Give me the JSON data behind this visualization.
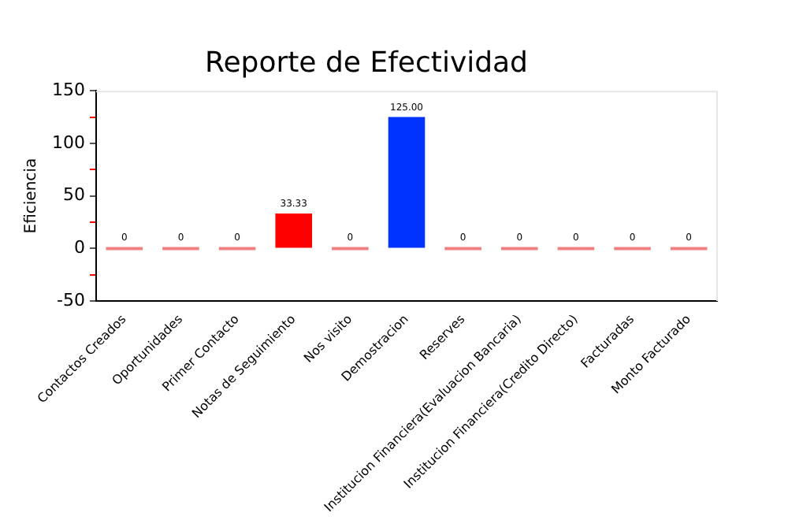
{
  "chart_data": {
    "type": "bar",
    "title": "Reporte de Efectividad",
    "ylabel": "Eficiencia",
    "categories": [
      "Contactos Creados",
      "Oportunidades",
      "Primer Contacto",
      "Notas de Seguimiento",
      "Nos visito",
      "Demostracion",
      "Reserves",
      "Institucion Financiera(Evaluacion Bancaria)",
      "Institucion Financiera(Credito Directo)",
      "Facturadas",
      "Monto Facturado"
    ],
    "values": [
      0,
      0,
      0,
      33.33,
      0,
      125,
      0,
      0,
      0,
      0,
      0
    ],
    "value_labels": [
      "0",
      "0",
      "0",
      "33.33",
      "0",
      "125.00",
      "0",
      "0",
      "0",
      "0",
      "0"
    ],
    "colors": [
      "#f08080",
      "#f08080",
      "#f08080",
      "#ff0000",
      "#f08080",
      "#0033ff",
      "#f08080",
      "#f08080",
      "#f08080",
      "#f08080",
      "#f08080"
    ],
    "ylim": [
      -50,
      150
    ],
    "yticks": [
      -50,
      {
        "value": -25,
        "label": null
      },
      0,
      {
        "value": 25,
        "label": null
      },
      50,
      {
        "value": 75,
        "label": null
      },
      100,
      {
        "value": 125,
        "label": null
      },
      150
    ],
    "grid": false,
    "legend": false
  }
}
